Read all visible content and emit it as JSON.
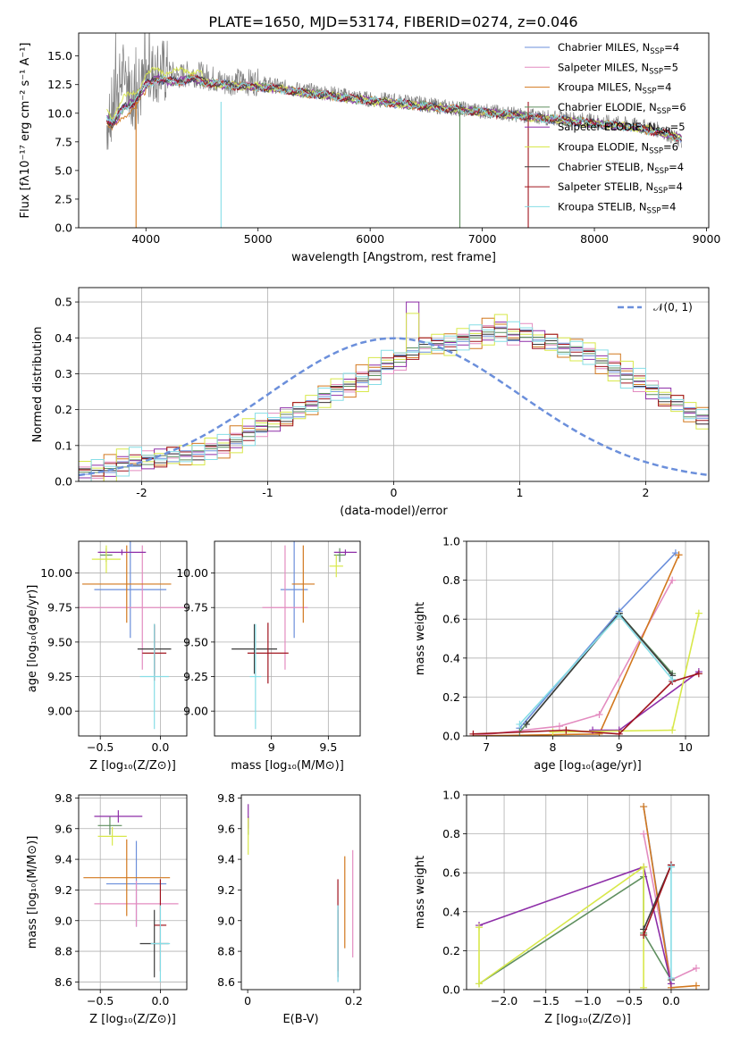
{
  "figure_title": "PLATE=1650, MJD=53174, FIBERID=0274, z=0.046",
  "series_colors": [
    "#6b8fdb",
    "#e38cc0",
    "#d2781e",
    "#5f8f5f",
    "#8e2fa8",
    "#d8e84a",
    "#3c3c3c",
    "#a0141e",
    "#86dde6"
  ],
  "chart_data": [
    {
      "id": "spectrum",
      "type": "line",
      "title": "PLATE=1650, MJD=53174, FIBERID=0274, z=0.046",
      "xlabel": "wavelength [Angstrom, rest frame]",
      "ylabel": "Flux [fλ10⁻¹⁷ erg cm⁻² s⁻¹ A⁻¹]",
      "xlim": [
        3400,
        9020
      ],
      "ylim": [
        0,
        17
      ],
      "xticks": [
        4000,
        5000,
        6000,
        7000,
        8000,
        9000
      ],
      "yticks": [
        0.0,
        2.5,
        5.0,
        7.5,
        10.0,
        12.5,
        15.0
      ],
      "grid": false,
      "legend_placement": "right",
      "legend": [
        {
          "label": "Chabrier MILES, N",
          "sub": "SSP",
          "eq": "=4"
        },
        {
          "label": "Salpeter MILES, N",
          "sub": "SSP",
          "eq": "=5"
        },
        {
          "label": "Kroupa MILES, N",
          "sub": "SSP",
          "eq": "=4"
        },
        {
          "label": "Chabrier ELODIE, N",
          "sub": "SSP",
          "eq": "=6"
        },
        {
          "label": "Salpeter ELODIE, N",
          "sub": "SSP",
          "eq": "=5"
        },
        {
          "label": "Kroupa ELODIE, N",
          "sub": "SSP",
          "eq": "=6"
        },
        {
          "label": "Chabrier STELIB, N",
          "sub": "SSP",
          "eq": "=4"
        },
        {
          "label": "Salpeter STELIB, N",
          "sub": "SSP",
          "eq": "=4"
        },
        {
          "label": "Kroupa STELIB, N",
          "sub": "SSP",
          "eq": "=4"
        }
      ],
      "series": [
        {
          "name": "data",
          "color": "#808080",
          "x": [
            3650,
            3700,
            3750,
            3800,
            3850,
            3900,
            3950,
            4000,
            4100,
            4200,
            4300,
            4400,
            4500,
            4600,
            4700,
            4800,
            4900,
            5000,
            5200,
            5400,
            5600,
            5800,
            6000,
            6200,
            6400,
            6600,
            6800,
            7000,
            7200,
            7400,
            7600,
            7800,
            8000,
            8200,
            8400,
            8600,
            8780
          ],
          "y": [
            9.0,
            10.5,
            12.0,
            13.5,
            12.5,
            11.0,
            12.0,
            13.0,
            13.8,
            13.5,
            13.2,
            13.5,
            13.3,
            13.0,
            12.6,
            12.8,
            12.7,
            12.7,
            12.3,
            12.0,
            11.8,
            11.5,
            11.2,
            11.1,
            10.9,
            10.6,
            10.4,
            10.2,
            10.0,
            9.8,
            9.6,
            9.5,
            9.3,
            9.1,
            8.9,
            8.5,
            7.5
          ]
        },
        {
          "name": "model",
          "color": "#86dde6",
          "x": [
            3650,
            3700,
            3800,
            3900,
            4000,
            4100,
            4200,
            4300,
            4400,
            4600,
            4800,
            5000,
            5200,
            5400,
            5600,
            5800,
            6000,
            6200,
            6400,
            6600,
            6800,
            7000,
            7200,
            7400,
            7600,
            7800,
            8000,
            8200,
            8400,
            8600,
            8780
          ],
          "y": [
            9.6,
            9.0,
            10.5,
            11.0,
            12.5,
            13.0,
            12.8,
            12.8,
            13.0,
            12.6,
            12.4,
            12.3,
            12.1,
            11.8,
            11.6,
            11.3,
            11.1,
            10.9,
            10.7,
            10.5,
            10.3,
            10.1,
            9.9,
            9.7,
            9.5,
            9.3,
            9.1,
            8.9,
            8.7,
            8.3,
            7.8
          ]
        }
      ]
    },
    {
      "id": "residuals",
      "type": "step",
      "xlabel": "(data-model)/error",
      "ylabel": "Normed distribution",
      "xlim": [
        -2.5,
        2.5
      ],
      "ylim": [
        0,
        0.54
      ],
      "xticks": [
        -2,
        -1,
        0,
        1,
        2
      ],
      "yticks": [
        0.0,
        0.1,
        0.2,
        0.3,
        0.4,
        0.5
      ],
      "grid": true,
      "legend_placement": "top-right",
      "legend": [
        {
          "label": "𝒩(0, 1)",
          "color": "#6b8fdb",
          "dash": true
        }
      ],
      "bin_width": 0.1,
      "bins_start": -2.5,
      "values": [
        0.02,
        0.025,
        0.03,
        0.045,
        0.05,
        0.055,
        0.06,
        0.065,
        0.07,
        0.07,
        0.085,
        0.095,
        0.11,
        0.13,
        0.145,
        0.16,
        0.175,
        0.19,
        0.21,
        0.23,
        0.25,
        0.265,
        0.28,
        0.3,
        0.32,
        0.34,
        0.36,
        0.37,
        0.38,
        0.375,
        0.39,
        0.4,
        0.41,
        0.42,
        0.4,
        0.41,
        0.39,
        0.38,
        0.37,
        0.36,
        0.35,
        0.33,
        0.31,
        0.29,
        0.27,
        0.25,
        0.23,
        0.21,
        0.19,
        0.17,
        0.16,
        0.14,
        0.13,
        0.11,
        0.1,
        0.09,
        0.08,
        0.07,
        0.06,
        0.05,
        0.04,
        0.04,
        0.035,
        0.03,
        0.03,
        0.025,
        0.025,
        0.02,
        0.02,
        0.02
      ],
      "jitter": [
        0.0,
        0.006,
        -0.005,
        0.01,
        -0.008,
        0.012,
        0.004,
        -0.01,
        0.015,
        0.006
      ]
    },
    {
      "id": "age_vs_Z",
      "type": "errorbar",
      "xlabel": "Z [log₁₀(Z/Z⊙)]",
      "ylabel": "age  [log₁₀(age/yr)]",
      "xlim": [
        -0.68,
        0.22
      ],
      "ylim": [
        8.82,
        10.23
      ],
      "xticks": [
        -0.5,
        0.0
      ],
      "xticklabels": [
        "−0.5",
        "0.0"
      ],
      "yticks": [
        9.0,
        9.25,
        9.5,
        9.75,
        10.0
      ],
      "grid": true,
      "points": [
        {
          "series": 0,
          "x": -0.25,
          "y": 9.88,
          "xerr": 0.3,
          "yerr": 0.35
        },
        {
          "series": 1,
          "x": -0.15,
          "y": 9.75,
          "xerr": 0.55,
          "yerr": 0.45
        },
        {
          "series": 2,
          "x": -0.28,
          "y": 9.92,
          "xerr": 0.37,
          "yerr": 0.28
        },
        {
          "series": 3,
          "x": -0.45,
          "y": 10.13,
          "xerr": 0.05,
          "yerr": 0.05
        },
        {
          "series": 4,
          "x": -0.32,
          "y": 10.15,
          "xerr": 0.2,
          "yerr": 0.02
        },
        {
          "series": 5,
          "x": -0.45,
          "y": 10.1,
          "xerr": 0.12,
          "yerr": 0.1
        },
        {
          "series": 6,
          "x": -0.05,
          "y": 9.45,
          "xerr": 0.14,
          "yerr": 0.18
        },
        {
          "series": 7,
          "x": -0.05,
          "y": 9.42,
          "xerr": 0.1,
          "yerr": 0.2
        },
        {
          "series": 8,
          "x": -0.05,
          "y": 9.25,
          "xerr": 0.12,
          "yerr": 0.38
        }
      ]
    },
    {
      "id": "age_vs_mass",
      "type": "errorbar",
      "xlabel": "mass [log₁₀(M/M⊙)]",
      "ylabel": "",
      "xlim": [
        8.5,
        9.78
      ],
      "ylim": [
        8.82,
        10.23
      ],
      "xticks": [
        9.0,
        9.5
      ],
      "yticks": [
        9.0,
        9.25,
        9.5,
        9.75,
        10.0
      ],
      "grid": true,
      "points": [
        {
          "series": 0,
          "x": 9.2,
          "y": 9.88,
          "xerr": 0.12,
          "yerr": 0.35
        },
        {
          "series": 1,
          "x": 9.12,
          "y": 9.75,
          "xerr": 0.2,
          "yerr": 0.45
        },
        {
          "series": 2,
          "x": 9.28,
          "y": 9.92,
          "xerr": 0.1,
          "yerr": 0.28
        },
        {
          "series": 3,
          "x": 9.6,
          "y": 10.13,
          "xerr": 0.05,
          "yerr": 0.05
        },
        {
          "series": 4,
          "x": 9.65,
          "y": 10.15,
          "xerr": 0.1,
          "yerr": 0.02
        },
        {
          "series": 5,
          "x": 9.57,
          "y": 10.05,
          "xerr": 0.06,
          "yerr": 0.08
        },
        {
          "series": 6,
          "x": 8.85,
          "y": 9.45,
          "xerr": 0.2,
          "yerr": 0.18
        },
        {
          "series": 7,
          "x": 8.97,
          "y": 9.42,
          "xerr": 0.18,
          "yerr": 0.22
        },
        {
          "series": 8,
          "x": 8.86,
          "y": 9.25,
          "xerr": 0.05,
          "yerr": 0.38
        }
      ]
    },
    {
      "id": "weight_vs_age",
      "type": "line",
      "xlabel": "age  [log₁₀(age/yr)]",
      "ylabel": "mass weight",
      "xlim": [
        6.7,
        10.35
      ],
      "ylim": [
        0.0,
        1.0
      ],
      "xticks": [
        7,
        8,
        9,
        10
      ],
      "yticks": [
        0.0,
        0.2,
        0.4,
        0.6,
        0.8,
        1.0
      ],
      "grid": true,
      "series": [
        {
          "series": 0,
          "x": [
            7.5,
            9.0,
            9.85
          ],
          "y": [
            0.04,
            0.64,
            0.94
          ]
        },
        {
          "series": 1,
          "x": [
            6.8,
            8.1,
            8.7,
            9.8
          ],
          "y": [
            0.0,
            0.05,
            0.11,
            0.8
          ]
        },
        {
          "series": 2,
          "x": [
            6.8,
            8.7,
            9.9
          ],
          "y": [
            0.0,
            0.01,
            0.93
          ]
        },
        {
          "series": 3,
          "x": [
            7.5,
            9.0,
            9.8
          ],
          "y": [
            0.02,
            0.63,
            0.32
          ]
        },
        {
          "series": 4,
          "x": [
            8.6,
            9.0,
            10.2
          ],
          "y": [
            0.03,
            0.03,
            0.33
          ]
        },
        {
          "series": 5,
          "x": [
            8.0,
            9.8,
            10.2
          ],
          "y": [
            0.02,
            0.03,
            0.63
          ]
        },
        {
          "series": 6,
          "x": [
            7.6,
            9.0,
            9.8
          ],
          "y": [
            0.06,
            0.63,
            0.31
          ]
        },
        {
          "series": 7,
          "x": [
            6.8,
            8.2,
            9.0,
            9.8,
            10.2
          ],
          "y": [
            0.01,
            0.03,
            0.01,
            0.28,
            0.32
          ]
        },
        {
          "series": 8,
          "x": [
            7.5,
            9.0,
            9.8
          ],
          "y": [
            0.06,
            0.62,
            0.29
          ]
        }
      ]
    },
    {
      "id": "mass_vs_Z",
      "type": "errorbar",
      "xlabel": "Z [log₁₀(Z/Z⊙)]",
      "ylabel": "mass [log₁₀(M/M⊙)]",
      "xlim": [
        -0.68,
        0.22
      ],
      "ylim": [
        8.55,
        9.82
      ],
      "xticks": [
        -0.5,
        0.0
      ],
      "xticklabels": [
        "−0.5",
        "0.0"
      ],
      "yticks": [
        8.6,
        8.8,
        9.0,
        9.2,
        9.4,
        9.6,
        9.8
      ],
      "grid": true,
      "points": [
        {
          "series": 0,
          "x": -0.2,
          "y": 9.24,
          "xerr": 0.25,
          "yerr": 0.28
        },
        {
          "series": 1,
          "x": -0.2,
          "y": 9.11,
          "xerr": 0.35,
          "yerr": 0.15
        },
        {
          "series": 2,
          "x": -0.28,
          "y": 9.28,
          "xerr": 0.36,
          "yerr": 0.25
        },
        {
          "series": 3,
          "x": -0.42,
          "y": 9.62,
          "xerr": 0.1,
          "yerr": 0.06
        },
        {
          "series": 4,
          "x": -0.35,
          "y": 9.68,
          "xerr": 0.2,
          "yerr": 0.04
        },
        {
          "series": 5,
          "x": -0.4,
          "y": 9.55,
          "xerr": 0.12,
          "yerr": 0.06
        },
        {
          "series": 6,
          "x": -0.05,
          "y": 8.85,
          "xerr": 0.12,
          "yerr": 0.22
        },
        {
          "series": 7,
          "x": 0.0,
          "y": 8.97,
          "xerr": 0.05,
          "yerr": 0.3
        },
        {
          "series": 8,
          "x": 0.0,
          "y": 8.85,
          "xerr": 0.08,
          "yerr": 0.25
        }
      ]
    },
    {
      "id": "mass_vs_ebv",
      "type": "errorbar",
      "xlabel": "E(B-V)",
      "ylabel": "",
      "xlim": [
        -0.012,
        0.212
      ],
      "ylim": [
        8.55,
        9.82
      ],
      "xticks": [
        0.0,
        0.2
      ],
      "yticks": [
        8.6,
        8.8,
        9.0,
        9.2,
        9.4,
        9.6,
        9.8
      ],
      "grid": false,
      "points": [
        {
          "series": 0,
          "x": 0.17,
          "y": 8.85,
          "xerr": 0.0,
          "yerr": 0.25
        },
        {
          "series": 1,
          "x": 0.198,
          "y": 9.11,
          "xerr": 0.0,
          "yerr": 0.35
        },
        {
          "series": 2,
          "x": 0.183,
          "y": 9.12,
          "xerr": 0.0,
          "yerr": 0.3
        },
        {
          "series": 3,
          "x": 0.001,
          "y": 9.62,
          "xerr": 0.0,
          "yerr": 0.06
        },
        {
          "series": 4,
          "x": 0.001,
          "y": 9.68,
          "xerr": 0.0,
          "yerr": 0.08
        },
        {
          "series": 5,
          "x": 0.001,
          "y": 9.55,
          "xerr": 0.0,
          "yerr": 0.12
        },
        {
          "series": 6,
          "x": 0.17,
          "y": 8.85,
          "xerr": 0.0,
          "yerr": 0.22
        },
        {
          "series": 7,
          "x": 0.17,
          "y": 8.97,
          "xerr": 0.0,
          "yerr": 0.3
        },
        {
          "series": 8,
          "x": 0.17,
          "y": 8.85,
          "xerr": 0.0,
          "yerr": 0.25
        }
      ]
    },
    {
      "id": "weight_vs_Z",
      "type": "line",
      "xlabel": "Z [log₁₀(Z/Z⊙)]",
      "ylabel": "mass weight",
      "xlim": [
        -2.45,
        0.45
      ],
      "ylim": [
        0.0,
        1.0
      ],
      "xticks": [
        -2.0,
        -1.5,
        -1.0,
        -0.5,
        0.0
      ],
      "xticklabels": [
        "−2.0",
        "−1.5",
        "−1.0",
        "−0.5",
        "0.0"
      ],
      "yticks": [
        0.0,
        0.2,
        0.4,
        0.6,
        0.8,
        1.0
      ],
      "grid": true,
      "series": [
        {
          "series": 0,
          "x": [
            -0.33,
            0.0
          ],
          "y": [
            0.94,
            0.03
          ]
        },
        {
          "series": 1,
          "x": [
            -0.33,
            0.0,
            0.3
          ],
          "y": [
            0.8,
            0.05,
            0.11
          ]
        },
        {
          "series": 2,
          "x": [
            -0.33,
            0.0,
            0.3
          ],
          "y": [
            0.94,
            0.01,
            0.02
          ]
        },
        {
          "series": 3,
          "x": [
            -2.3,
            -0.33,
            -0.33,
            0.0
          ],
          "y": [
            0.03,
            0.58,
            0.29,
            0.05
          ]
        },
        {
          "series": 4,
          "x": [
            -2.3,
            -0.33,
            0.0
          ],
          "y": [
            0.33,
            0.63,
            0.03
          ]
        },
        {
          "series": 5,
          "x": [
            -2.3,
            -2.3,
            -0.33,
            -0.33
          ],
          "y": [
            0.32,
            0.03,
            0.63,
            0.01
          ]
        },
        {
          "series": 6,
          "x": [
            -0.33,
            0.0
          ],
          "y": [
            0.31,
            0.64
          ]
        },
        {
          "series": 7,
          "x": [
            -0.33,
            0.0
          ],
          "y": [
            0.28,
            0.64
          ]
        },
        {
          "series": 8,
          "x": [
            0.0,
            0.0
          ],
          "y": [
            0.06,
            0.63
          ]
        }
      ]
    }
  ]
}
